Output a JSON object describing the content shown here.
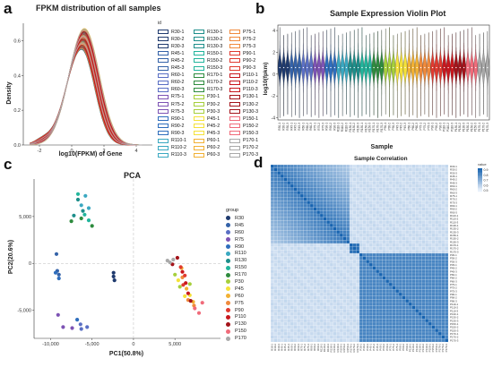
{
  "panels": {
    "a": {
      "letter": "a",
      "title": "FPKM distribution of all samples",
      "xlabel": "log10(FPKM) of Gene",
      "ylabel": "Density",
      "legend_title": "id"
    },
    "b": {
      "letter": "b",
      "title": "Sample Expression Violin Plot",
      "xlabel": "Sample",
      "ylabel": "log10(fpkm)"
    },
    "c": {
      "letter": "c",
      "title": "PCA",
      "xlabel": "PC1(50.8%)",
      "ylabel": "PC2(20.6%)",
      "legend_title": "group"
    },
    "d": {
      "letter": "d",
      "title": "Sample Correlation",
      "legend_title": "value"
    }
  },
  "colors": {
    "R30": "#1f3a6e",
    "R45": "#3462a8",
    "R60": "#5a6fc4",
    "R75": "#7d53b4",
    "R90": "#2f6ebd",
    "R110": "#3aa8c1",
    "R130": "#1d8e8a",
    "R150": "#22b59c",
    "R170": "#2e8b3e",
    "P30": "#a6cf3c",
    "P45": "#f5e23a",
    "P60": "#f2b134",
    "P75": "#f08a3c",
    "P90": "#e03a2f",
    "P110": "#c8171d",
    "P130": "#a3131a",
    "P150": "#f06b7a",
    "P170": "#a9a9a9"
  },
  "chart_data": [
    {
      "type": "line",
      "title": "FPKM distribution of all samples",
      "xlabel": "log10(FPKM) of Gene",
      "ylabel": "Density",
      "xlim": [
        -3,
        5
      ],
      "ylim": [
        0,
        0.7
      ],
      "x_ticks": [
        -2,
        0,
        2,
        4
      ],
      "y_ticks": [
        0.0,
        0.2,
        0.4,
        0.6
      ],
      "legend_title": "id",
      "legend_columns": [
        [
          "R30-1",
          "R30-2",
          "R30-3",
          "R45-1",
          "R45-2",
          "R45-3",
          "R60-1",
          "R60-2",
          "R60-3",
          "R75-1",
          "R75-2",
          "R75-3",
          "R90-1",
          "R90-2",
          "R90-3",
          "R110-1",
          "R110-2",
          "R110-3"
        ],
        [
          "R130-1",
          "R130-2",
          "R130-3",
          "R150-1",
          "R150-2",
          "R150-3",
          "R170-1",
          "R170-2",
          "R170-3",
          "P30-1",
          "P30-2",
          "P30-3",
          "P45-1",
          "P45-2",
          "P45-3",
          "P60-1",
          "P60-2",
          "P60-3"
        ],
        [
          "P75-1",
          "P75-2",
          "P75-3",
          "P90-1",
          "P90-2",
          "P90-3",
          "P110-1",
          "P110-2",
          "P110-3",
          "P130-1",
          "P130-2",
          "P130-3",
          "P150-1",
          "P150-2",
          "P150-3",
          "P170-1",
          "P170-2",
          "P170-3"
        ]
      ],
      "curve_shape": {
        "peak_x": 0.7,
        "peak_density_range": [
          0.55,
          0.67
        ]
      }
    },
    {
      "type": "violin",
      "title": "Sample Expression Violin Plot",
      "xlabel": "Sample",
      "ylabel": "log10(fpkm)",
      "ylim": [
        -4.2,
        4.5
      ],
      "y_ticks": [
        -4,
        -2,
        0,
        2,
        4
      ],
      "samples": [
        "R30-1",
        "R30-2",
        "R30-3",
        "R45-1",
        "R45-2",
        "R45-3",
        "R60-1",
        "R60-2",
        "R60-3",
        "R75-1",
        "R75-2",
        "R75-3",
        "R90-1",
        "R90-2",
        "R90-3",
        "R110-1",
        "R110-2",
        "R110-3",
        "R130-1",
        "R130-2",
        "R130-3",
        "R150-1",
        "R150-2",
        "R150-3",
        "R170-1",
        "R170-2",
        "R170-3",
        "P30-1",
        "P30-2",
        "P30-3",
        "P45-1",
        "P45-2",
        "P45-3",
        "P60-1",
        "P60-2",
        "P60-3",
        "P75-1",
        "P75-2",
        "P75-3",
        "P90-1",
        "P90-2",
        "P90-3",
        "P110-1",
        "P110-2",
        "P110-3",
        "P130-1",
        "P130-2",
        "P130-3",
        "P150-1",
        "P150-2",
        "P150-3",
        "P170-1",
        "P170-2",
        "P170-3"
      ],
      "median_approx": 0.6,
      "range_approx": [
        -4,
        4.3
      ]
    },
    {
      "type": "scatter",
      "title": "PCA",
      "xlabel": "PC1(50.8%)",
      "ylabel": "PC2(20.6%)",
      "xlim": [
        -12000,
        10500
      ],
      "ylim": [
        -8000,
        9000
      ],
      "x_ticks": [
        -10000,
        -5000,
        0,
        5000
      ],
      "y_ticks": [
        -5000,
        0,
        5000
      ],
      "x_tick_labels": [
        "-10,000",
        "-5,000",
        "0",
        "5,000"
      ],
      "y_tick_labels": [
        "-5,000",
        "0",
        "5,000"
      ],
      "legend_title": "group",
      "groups": [
        "R30",
        "R45",
        "R60",
        "R75",
        "R90",
        "R110",
        "R130",
        "R150",
        "R170",
        "P30",
        "P45",
        "P60",
        "P75",
        "P90",
        "P110",
        "P130",
        "P150",
        "P170"
      ],
      "series": [
        {
          "name": "R30",
          "points": [
            [
              -2400,
              -1000
            ],
            [
              -2400,
              -1400
            ],
            [
              -2300,
              -1800
            ]
          ]
        },
        {
          "name": "R45",
          "points": [
            [
              -9300,
              1000
            ],
            [
              -9200,
              -800
            ],
            [
              -9000,
              -1200
            ]
          ]
        },
        {
          "name": "R60",
          "points": [
            [
              -6400,
              -6500
            ],
            [
              -6300,
              -7000
            ],
            [
              -5600,
              -6800
            ]
          ]
        },
        {
          "name": "R75",
          "points": [
            [
              -9100,
              -5500
            ],
            [
              -8500,
              -6800
            ],
            [
              -7400,
              -6900
            ]
          ]
        },
        {
          "name": "R90",
          "points": [
            [
              -9400,
              -1000
            ],
            [
              -9000,
              -1600
            ],
            [
              -6800,
              -6000
            ]
          ]
        },
        {
          "name": "R110",
          "points": [
            [
              -6300,
              6200
            ],
            [
              -5800,
              7200
            ],
            [
              -5400,
              5900
            ]
          ]
        },
        {
          "name": "R130",
          "points": [
            [
              -7200,
              5100
            ],
            [
              -6700,
              6800
            ],
            [
              -6100,
              5600
            ]
          ]
        },
        {
          "name": "R150",
          "points": [
            [
              -6700,
              7400
            ],
            [
              -5900,
              5200
            ],
            [
              -5400,
              4600
            ]
          ]
        },
        {
          "name": "R170",
          "points": [
            [
              -7500,
              4500
            ],
            [
              -5000,
              4000
            ],
            [
              -6300,
              4800
            ]
          ]
        },
        {
          "name": "P30",
          "points": [
            [
              5000,
              -1200
            ],
            [
              5600,
              -2500
            ],
            [
              6800,
              -2200
            ]
          ]
        },
        {
          "name": "P45",
          "points": [
            [
              5400,
              -1800
            ],
            [
              6200,
              -3500
            ],
            [
              6800,
              -3400
            ]
          ]
        },
        {
          "name": "P60",
          "points": [
            [
              5800,
              -500
            ],
            [
              6400,
              -2700
            ],
            [
              7200,
              -4100
            ]
          ]
        },
        {
          "name": "P75",
          "points": [
            [
              5900,
              -1500
            ],
            [
              6600,
              -3900
            ],
            [
              7300,
              -4500
            ]
          ]
        },
        {
          "name": "P90",
          "points": [
            [
              5700,
              -400
            ],
            [
              6200,
              -1300
            ],
            [
              6000,
              -2300
            ]
          ]
        },
        {
          "name": "P110",
          "points": [
            [
              5900,
              -900
            ],
            [
              6300,
              -2100
            ],
            [
              6600,
              -3200
            ]
          ]
        },
        {
          "name": "P130",
          "points": [
            [
              4700,
              -100
            ],
            [
              5300,
              600
            ],
            [
              6900,
              -4000
            ]
          ]
        },
        {
          "name": "P150",
          "points": [
            [
              7400,
              -4800
            ],
            [
              7900,
              -5300
            ],
            [
              8300,
              -4200
            ]
          ]
        },
        {
          "name": "P170",
          "points": [
            [
              4100,
              300
            ],
            [
              4400,
              100
            ],
            [
              4800,
              400
            ]
          ]
        }
      ]
    },
    {
      "type": "heatmap",
      "title": "Sample Correlation",
      "legend_title": "value",
      "color_ticks": [
        "0.9",
        "0.8",
        "0.7",
        "0.6",
        "0.5"
      ],
      "row_labels": [
        "R30-1",
        "R30-2",
        "R30-3",
        "R45-1",
        "R45-2",
        "R45-3",
        "R60-1",
        "R60-2",
        "R60-3",
        "R75-1",
        "R75-2",
        "R75-3",
        "R90-1",
        "R90-2",
        "R90-3",
        "R110-1",
        "R110-2",
        "R110-3",
        "R130-1",
        "R130-2",
        "R130-3",
        "R150-1",
        "R150-2",
        "R150-3",
        "R170-1",
        "R170-2",
        "R170-3",
        "P30-1",
        "P30-2",
        "P30-3",
        "P45-1",
        "P45-2",
        "P45-3",
        "P60-1",
        "P60-2",
        "P60-3",
        "P75-1",
        "P75-2",
        "P75-3",
        "P90-1",
        "P90-2",
        "P90-3",
        "P110-1",
        "P110-2",
        "P110-3",
        "P130-1",
        "P130-2",
        "P130-3",
        "P150-1",
        "P150-2",
        "P150-3",
        "P170-1",
        "P170-2",
        "P170-3"
      ],
      "blocks": [
        {
          "rows": [
            0,
            24
          ],
          "within_value": 0.8
        },
        {
          "rows": [
            24,
            27
          ],
          "within_value": 0.95
        },
        {
          "rows": [
            27,
            54
          ],
          "within_value": 0.88
        }
      ],
      "between_value": 0.55
    }
  ]
}
